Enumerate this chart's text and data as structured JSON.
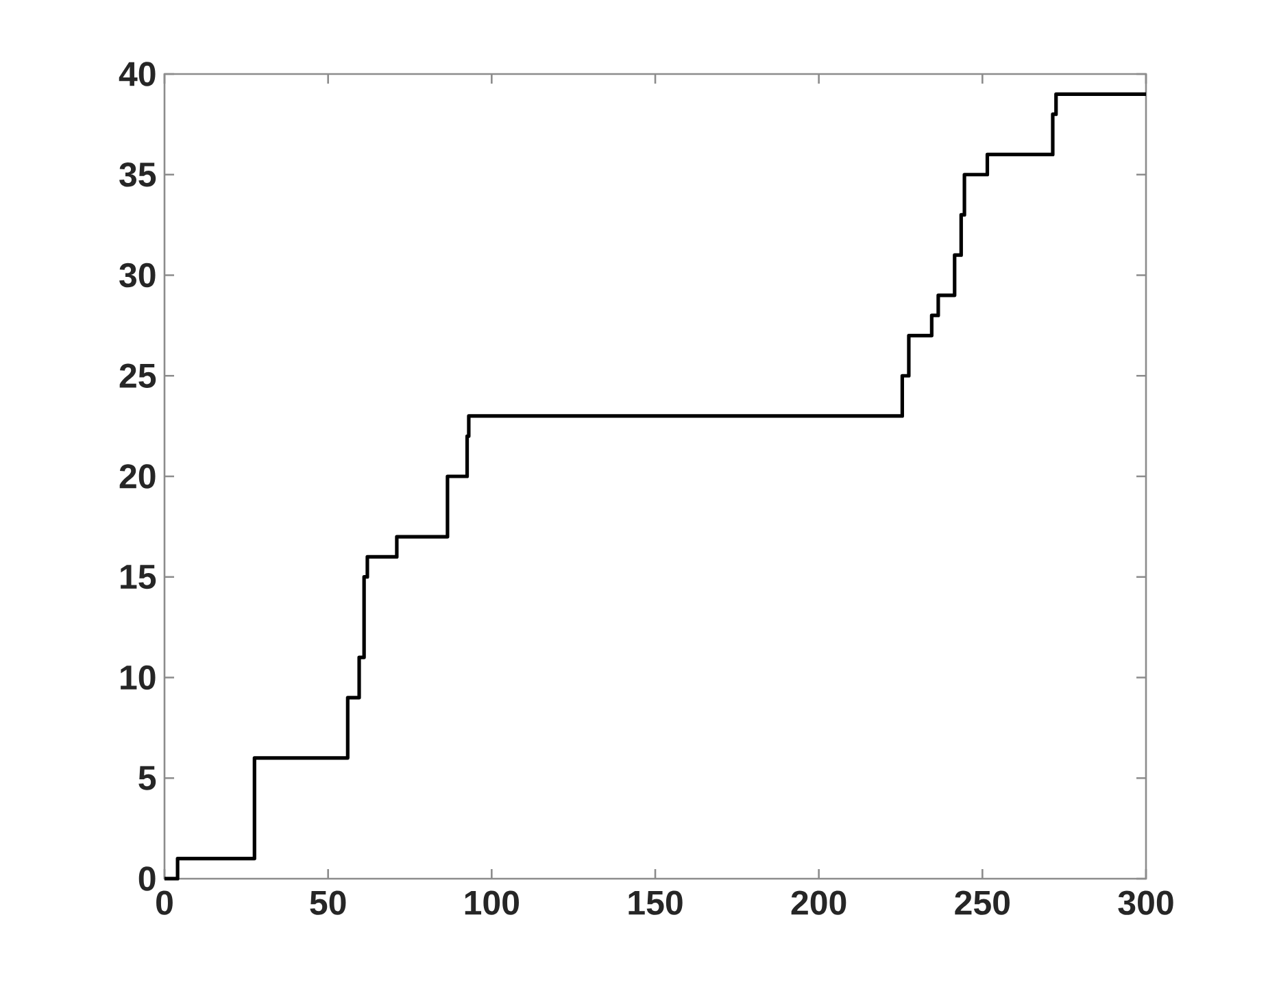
{
  "chart_data": {
    "type": "step",
    "x": [
      0,
      4,
      27.5,
      56,
      59.5,
      61,
      62,
      71,
      86.5,
      92.5,
      93,
      225.5,
      227.5,
      234.5,
      236.5,
      241.5,
      243.5,
      244.5,
      251.5,
      271.5,
      272.5,
      300
    ],
    "values": [
      0,
      1,
      6,
      9,
      11,
      15,
      16,
      17,
      20,
      22,
      23,
      25,
      27,
      28,
      29,
      31,
      33,
      35,
      36,
      38,
      39,
      39
    ],
    "color": "#000000",
    "line_style": "solid",
    "xlim": [
      0,
      300
    ],
    "ylim": [
      0,
      40
    ],
    "xticks": [
      0,
      50,
      100,
      150,
      200,
      250,
      300
    ],
    "yticks": [
      0,
      5,
      10,
      15,
      20,
      25,
      30,
      35,
      40
    ]
  }
}
